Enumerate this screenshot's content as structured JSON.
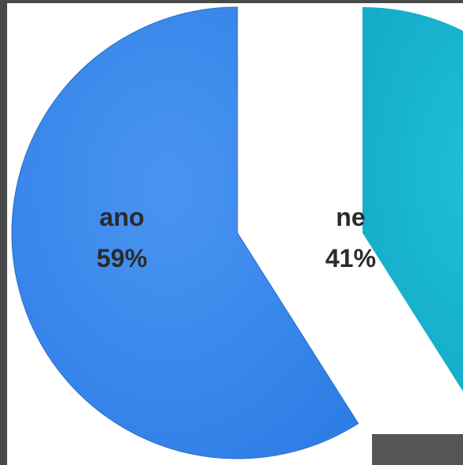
{
  "chart_data": {
    "type": "pie",
    "title": "",
    "categories": [
      "ano",
      "ne"
    ],
    "values": [
      59,
      41
    ],
    "labels": [
      "59%",
      "41%"
    ],
    "colors": [
      "#3a86ec",
      "#17b3cf"
    ],
    "legend": "none",
    "exploded": "ne"
  }
}
